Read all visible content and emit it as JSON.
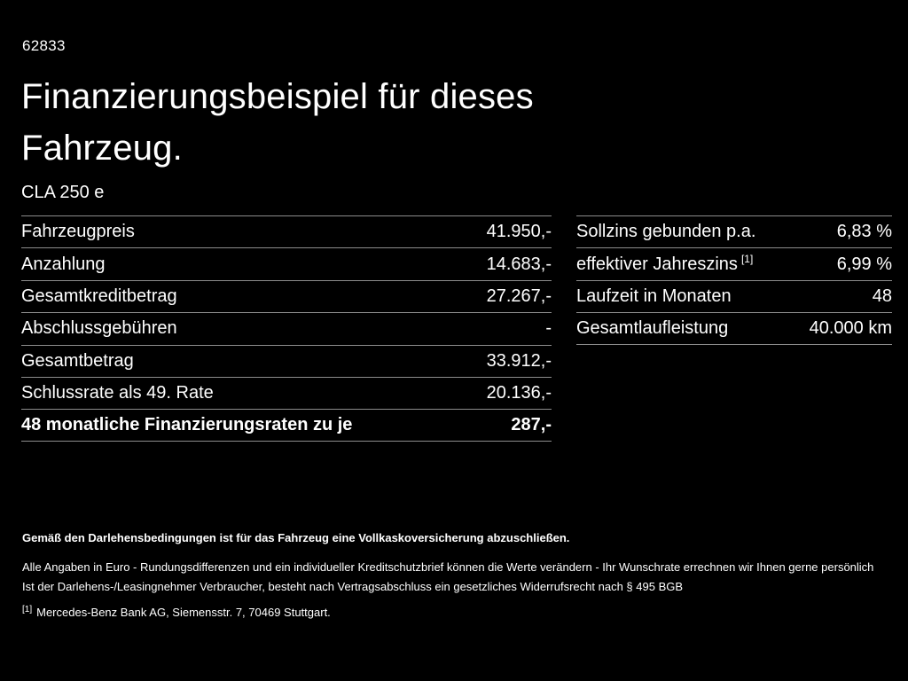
{
  "colors": {
    "background": "#000000",
    "text": "#ffffff",
    "divider": "#8c8c8c"
  },
  "header": {
    "vehicle_id": "62833",
    "title_line1": "Finanzierungsbeispiel für dieses",
    "title_line2": "Fahrzeug.",
    "model": "CLA 250 e"
  },
  "left_table": {
    "rows": [
      {
        "label": "Fahrzeugpreis",
        "value": "41.950,-"
      },
      {
        "label": "Anzahlung",
        "value": "14.683,-"
      },
      {
        "label": "Gesamtkreditbetrag",
        "value": "27.267,-"
      },
      {
        "label": "Abschlussgebühren",
        "value": "-"
      },
      {
        "label": "Gesamtbetrag",
        "value": "33.912,-"
      },
      {
        "label": "Schlussrate als 49. Rate",
        "value": "20.136,-"
      },
      {
        "label": "48 monatliche Finanzierungsraten zu je",
        "value": "287,-"
      }
    ]
  },
  "right_table": {
    "rows": [
      {
        "label": "Sollzins gebunden p.a.",
        "sup": "",
        "value": "6,83 %"
      },
      {
        "label": "effektiver Jahreszins",
        "sup": "[1]",
        "value": "6,99 %"
      },
      {
        "label": "Laufzeit in Monaten",
        "sup": "",
        "value": "48"
      },
      {
        "label": "Gesamtlaufleistung",
        "sup": "",
        "value": "40.000 km"
      }
    ]
  },
  "footer": {
    "lead": "Gemäß den Darlehensbedingungen ist für das Fahrzeug eine Vollkaskoversicherung abzuschließen.",
    "line2": "Alle Angaben in Euro - Rundungsdifferenzen und ein individueller Kreditschutzbrief können die Werte verändern - Ihr Wunschrate errechnen wir Ihnen gerne persönlich",
    "line3": "Ist der Darlehens-/Leasingnehmer Verbraucher, besteht nach Vertragsabschluss ein gesetzliches Widerrufsrecht nach § 495 BGB",
    "footnote_marker": "[1]",
    "footnote_text": "Mercedes-Benz Bank AG, Siemensstr. 7, 70469 Stuttgart."
  }
}
